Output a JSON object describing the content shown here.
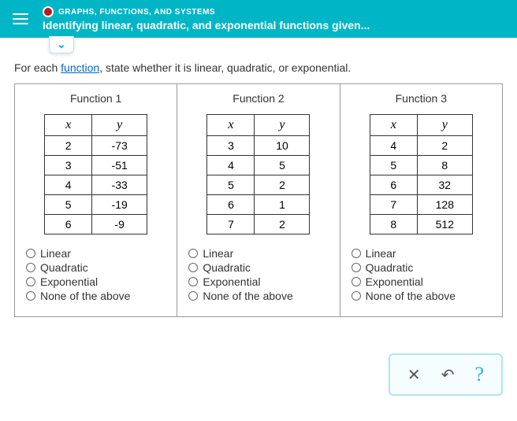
{
  "header": {
    "category": "GRAPHS, FUNCTIONS, AND SYSTEMS",
    "title": "Identifying linear, quadratic, and exponential functions given..."
  },
  "instruction_pre": "For each ",
  "instruction_link": "function",
  "instruction_post": ", state whether it is linear, quadratic, or exponential.",
  "col_x": "x",
  "col_y": "y",
  "functions": [
    {
      "name": "Function 1",
      "rows": [
        {
          "x": "2",
          "y": "-73"
        },
        {
          "x": "3",
          "y": "-51"
        },
        {
          "x": "4",
          "y": "-33"
        },
        {
          "x": "5",
          "y": "-19"
        },
        {
          "x": "6",
          "y": "-9"
        }
      ]
    },
    {
      "name": "Function 2",
      "rows": [
        {
          "x": "3",
          "y": "10"
        },
        {
          "x": "4",
          "y": "5"
        },
        {
          "x": "5",
          "y": "2"
        },
        {
          "x": "6",
          "y": "1"
        },
        {
          "x": "7",
          "y": "2"
        }
      ]
    },
    {
      "name": "Function 3",
      "rows": [
        {
          "x": "4",
          "y": "2"
        },
        {
          "x": "5",
          "y": "8"
        },
        {
          "x": "6",
          "y": "32"
        },
        {
          "x": "7",
          "y": "128"
        },
        {
          "x": "8",
          "y": "512"
        }
      ]
    }
  ],
  "options": [
    "Linear",
    "Quadratic",
    "Exponential",
    "None of the above"
  ],
  "toolbar": {
    "close": "✕",
    "reset": "↶",
    "help": "?"
  }
}
